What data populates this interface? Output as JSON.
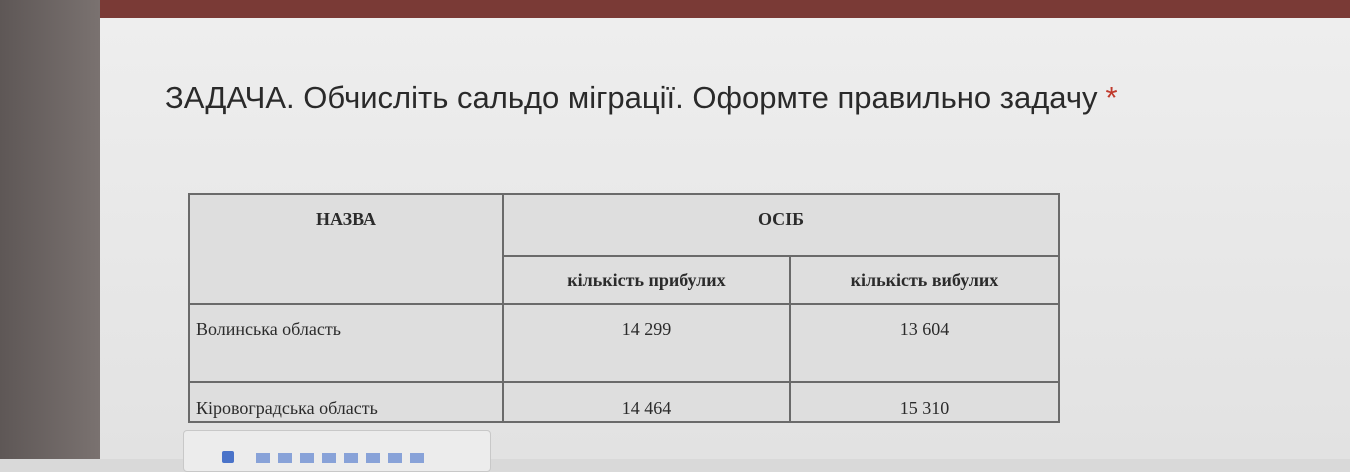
{
  "question": {
    "title": "ЗАДАЧА. Обчисліть сальдо міграції. Оформте правильно задачу",
    "required_mark": "*"
  },
  "table": {
    "header": {
      "name": "НАЗВА",
      "group": "ОСІБ",
      "arrived": "кількість прибулих",
      "departed": "кількість вибулих"
    },
    "rows": [
      {
        "name": "Волинська область",
        "arrived": "14 299",
        "departed": "13 604"
      },
      {
        "name": "Кіровоградська область",
        "arrived": "14 464",
        "departed": "15 310"
      }
    ]
  },
  "colors": {
    "top_bar": "#7a3a36",
    "required": "#c0392b",
    "upload_accent": "#4a73c9"
  }
}
